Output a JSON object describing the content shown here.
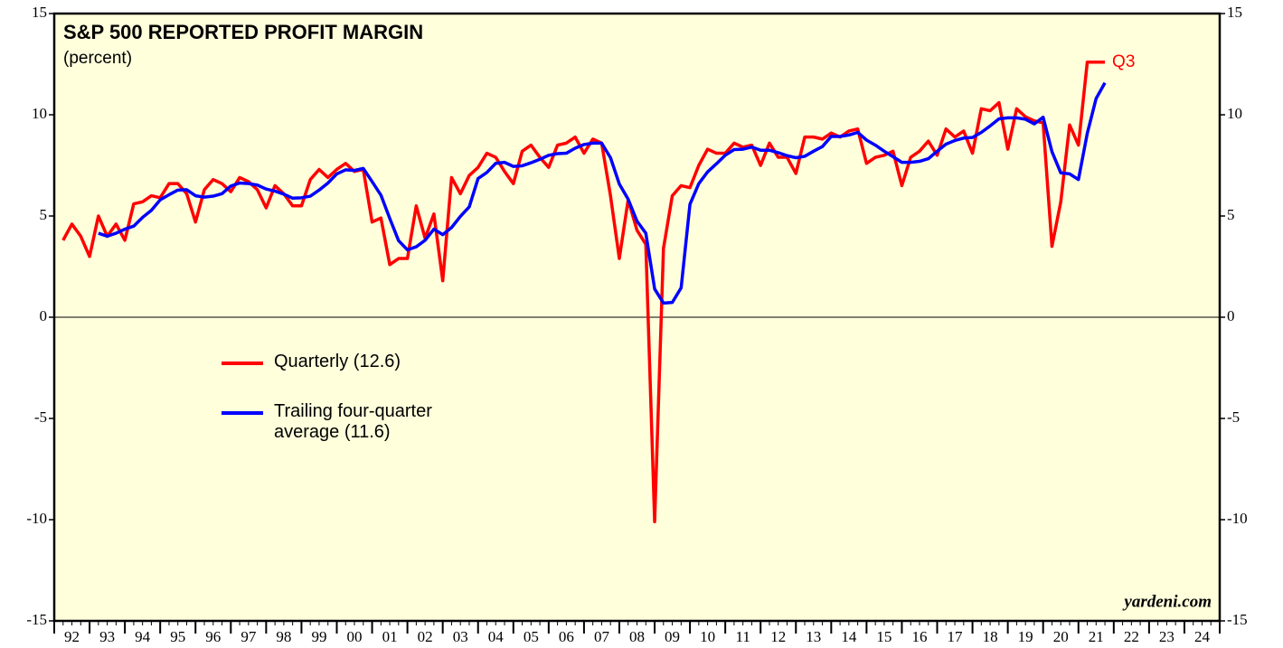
{
  "chart_data": {
    "type": "line",
    "title": "S&P 500 REPORTED PROFIT MARGIN",
    "subtitle": "(percent)",
    "annotation": "Q3",
    "source": "yardeni.com",
    "x": [
      1992.25,
      1992.5,
      1992.75,
      1993,
      1993.25,
      1993.5,
      1993.75,
      1994,
      1994.25,
      1994.5,
      1994.75,
      1995,
      1995.25,
      1995.5,
      1995.75,
      1996,
      1996.25,
      1996.5,
      1996.75,
      1997,
      1997.25,
      1997.5,
      1997.75,
      1998,
      1998.25,
      1998.5,
      1998.75,
      1999,
      1999.25,
      1999.5,
      1999.75,
      2000,
      2000.25,
      2000.5,
      2000.75,
      2001,
      2001.25,
      2001.5,
      2001.75,
      2002,
      2002.25,
      2002.5,
      2002.75,
      2003,
      2003.25,
      2003.5,
      2003.75,
      2004,
      2004.25,
      2004.5,
      2004.75,
      2005,
      2005.25,
      2005.5,
      2005.75,
      2006,
      2006.25,
      2006.5,
      2006.75,
      2007,
      2007.25,
      2007.5,
      2007.75,
      2008,
      2008.25,
      2008.5,
      2008.75,
      2009,
      2009.25,
      2009.5,
      2009.75,
      2010,
      2010.25,
      2010.5,
      2010.75,
      2011,
      2011.25,
      2011.5,
      2011.75,
      2012,
      2012.25,
      2012.5,
      2012.75,
      2013,
      2013.25,
      2013.5,
      2013.75,
      2014,
      2014.25,
      2014.5,
      2014.75,
      2015,
      2015.25,
      2015.5,
      2015.75,
      2016,
      2016.25,
      2016.5,
      2016.75,
      2017,
      2017.25,
      2017.5,
      2017.75,
      2018,
      2018.25,
      2018.5,
      2018.75,
      2019,
      2019.25,
      2019.5,
      2019.75,
      2020,
      2020.25,
      2020.5,
      2020.75,
      2021,
      2021.25,
      2021.5,
      2021.75
    ],
    "series": [
      {
        "name": "Quarterly (12.6)",
        "color": "#ff0000",
        "values": [
          3.8,
          4.6,
          4.0,
          3.0,
          5.0,
          4.0,
          4.6,
          3.8,
          5.6,
          5.7,
          6.0,
          5.9,
          6.6,
          6.6,
          6.1,
          4.7,
          6.3,
          6.8,
          6.6,
          6.2,
          6.9,
          6.7,
          6.3,
          5.4,
          6.5,
          6.1,
          5.5,
          5.5,
          6.8,
          7.3,
          6.9,
          7.3,
          7.6,
          7.2,
          7.3,
          4.7,
          4.9,
          2.6,
          2.9,
          2.9,
          5.5,
          3.9,
          5.1,
          1.8,
          6.9,
          6.1,
          7.0,
          7.4,
          8.1,
          7.9,
          7.2,
          6.6,
          8.2,
          8.5,
          7.9,
          7.4,
          8.5,
          8.6,
          8.9,
          8.1,
          8.8,
          8.6,
          6.0,
          2.9,
          5.8,
          4.3,
          3.6,
          -10.1,
          3.4,
          6.0,
          6.5,
          6.4,
          7.5,
          8.3,
          8.1,
          8.1,
          8.6,
          8.4,
          8.5,
          7.5,
          8.6,
          7.9,
          7.9,
          7.1,
          8.9,
          8.9,
          8.8,
          9.1,
          8.9,
          9.2,
          9.3,
          7.6,
          7.9,
          8.0,
          8.2,
          6.5,
          7.9,
          8.2,
          8.7,
          8.0,
          9.3,
          8.9,
          9.2,
          8.1,
          10.3,
          10.2,
          10.6,
          8.3,
          10.3,
          9.9,
          9.7,
          9.6,
          3.5,
          5.7,
          9.5,
          8.5,
          12.6,
          12.6,
          12.6
        ]
      },
      {
        "name": "Trailing four-quarter average (11.6)",
        "color": "#0000ff",
        "values": [
          null,
          null,
          null,
          null,
          4.15,
          4.0,
          4.15,
          4.35,
          4.5,
          4.93,
          5.28,
          5.8,
          6.05,
          6.28,
          6.3,
          6.0,
          5.93,
          5.98,
          6.1,
          6.48,
          6.63,
          6.6,
          6.53,
          6.33,
          6.23,
          6.08,
          5.88,
          5.9,
          5.98,
          6.28,
          6.63,
          7.08,
          7.28,
          7.25,
          7.35,
          6.7,
          6.03,
          4.88,
          3.78,
          3.33,
          3.48,
          3.8,
          4.35,
          4.08,
          4.43,
          4.98,
          5.45,
          6.85,
          7.15,
          7.6,
          7.65,
          7.45,
          7.48,
          7.63,
          7.8,
          8.0,
          8.08,
          8.1,
          8.35,
          8.53,
          8.6,
          8.6,
          7.88,
          6.58,
          5.83,
          4.75,
          4.15,
          1.4,
          0.7,
          0.73,
          1.45,
          5.58,
          6.6,
          7.18,
          7.58,
          8.0,
          8.28,
          8.3,
          8.4,
          8.25,
          8.25,
          8.13,
          7.98,
          7.88,
          7.95,
          8.2,
          8.43,
          8.93,
          8.93,
          9.0,
          9.13,
          8.75,
          8.5,
          8.2,
          7.93,
          7.65,
          7.65,
          7.7,
          7.83,
          8.2,
          8.55,
          8.73,
          8.85,
          8.88,
          9.13,
          9.45,
          9.8,
          9.85,
          9.85,
          9.78,
          9.55,
          9.88,
          8.18,
          7.13,
          7.08,
          6.8,
          9.08,
          10.8,
          11.58
        ]
      }
    ],
    "xlim": [
      1992,
      2025
    ],
    "xticks": [
      {
        "value": 1992.5,
        "label": "92"
      },
      {
        "value": 1993.5,
        "label": "93"
      },
      {
        "value": 1994.5,
        "label": "94"
      },
      {
        "value": 1995.5,
        "label": "95"
      },
      {
        "value": 1996.5,
        "label": "96"
      },
      {
        "value": 1997.5,
        "label": "97"
      },
      {
        "value": 1998.5,
        "label": "98"
      },
      {
        "value": 1999.5,
        "label": "99"
      },
      {
        "value": 2000.5,
        "label": "00"
      },
      {
        "value": 2001.5,
        "label": "01"
      },
      {
        "value": 2002.5,
        "label": "02"
      },
      {
        "value": 2003.5,
        "label": "03"
      },
      {
        "value": 2004.5,
        "label": "04"
      },
      {
        "value": 2005.5,
        "label": "05"
      },
      {
        "value": 2006.5,
        "label": "06"
      },
      {
        "value": 2007.5,
        "label": "07"
      },
      {
        "value": 2008.5,
        "label": "08"
      },
      {
        "value": 2009.5,
        "label": "09"
      },
      {
        "value": 2010.5,
        "label": "10"
      },
      {
        "value": 2011.5,
        "label": "11"
      },
      {
        "value": 2012.5,
        "label": "12"
      },
      {
        "value": 2013.5,
        "label": "13"
      },
      {
        "value": 2014.5,
        "label": "14"
      },
      {
        "value": 2015.5,
        "label": "15"
      },
      {
        "value": 2016.5,
        "label": "16"
      },
      {
        "value": 2017.5,
        "label": "17"
      },
      {
        "value": 2018.5,
        "label": "18"
      },
      {
        "value": 2019.5,
        "label": "19"
      },
      {
        "value": 2020.5,
        "label": "20"
      },
      {
        "value": 2021.5,
        "label": "21"
      },
      {
        "value": 2022.5,
        "label": "22"
      },
      {
        "value": 2023.5,
        "label": "23"
      },
      {
        "value": 2024.5,
        "label": "24"
      }
    ],
    "ylim": [
      -15,
      15
    ],
    "yticks": [
      -15,
      -10,
      -5,
      0,
      5,
      10,
      15
    ]
  }
}
